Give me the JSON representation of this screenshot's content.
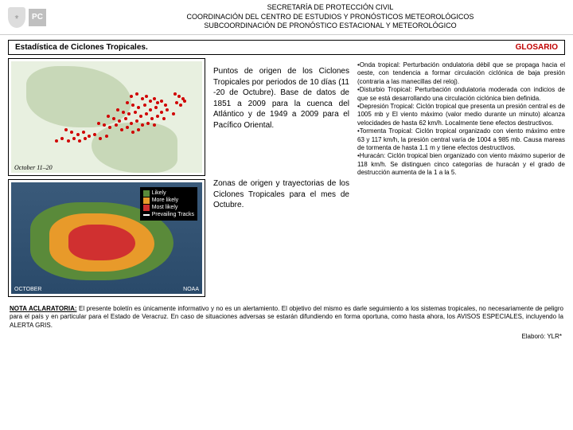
{
  "header": {
    "line1": "SECRETARÍA DE PROTECCIÓN CIVIL",
    "line2": "COORDINACIÓN DEL CENTRO DE ESTUDIOS Y PRONÓSTICOS METEOROLÓGICOS",
    "line3": "SUBCOORDINACIÓN DE PRONÓSTICO ESTACIONAL Y METEOROLÓGICO",
    "pc": "PC"
  },
  "section": {
    "title": "Estadística de Ciclones Tropicales.",
    "glosario": "GLOSARIO"
  },
  "map1": {
    "label": "October 11–20",
    "dots": [
      [
        62,
        30
      ],
      [
        65,
        28
      ],
      [
        68,
        32
      ],
      [
        70,
        30
      ],
      [
        72,
        34
      ],
      [
        74,
        32
      ],
      [
        76,
        36
      ],
      [
        78,
        34
      ],
      [
        80,
        38
      ],
      [
        60,
        36
      ],
      [
        63,
        38
      ],
      [
        66,
        40
      ],
      [
        69,
        38
      ],
      [
        72,
        42
      ],
      [
        75,
        40
      ],
      [
        78,
        44
      ],
      [
        81,
        42
      ],
      [
        84,
        46
      ],
      [
        55,
        42
      ],
      [
        58,
        44
      ],
      [
        61,
        46
      ],
      [
        64,
        44
      ],
      [
        67,
        48
      ],
      [
        70,
        46
      ],
      [
        73,
        50
      ],
      [
        76,
        48
      ],
      [
        79,
        50
      ],
      [
        50,
        48
      ],
      [
        53,
        50
      ],
      [
        56,
        52
      ],
      [
        59,
        50
      ],
      [
        62,
        54
      ],
      [
        65,
        52
      ],
      [
        68,
        56
      ],
      [
        71,
        54
      ],
      [
        74,
        56
      ],
      [
        45,
        54
      ],
      [
        48,
        56
      ],
      [
        51,
        58
      ],
      [
        54,
        56
      ],
      [
        57,
        60
      ],
      [
        60,
        58
      ],
      [
        63,
        62
      ],
      [
        66,
        60
      ],
      [
        28,
        60
      ],
      [
        31,
        62
      ],
      [
        34,
        64
      ],
      [
        37,
        62
      ],
      [
        40,
        66
      ],
      [
        43,
        64
      ],
      [
        46,
        68
      ],
      [
        49,
        66
      ],
      [
        38,
        68
      ],
      [
        35,
        70
      ],
      [
        32,
        68
      ],
      [
        29,
        70
      ],
      [
        26,
        68
      ],
      [
        23,
        70
      ],
      [
        85,
        28
      ],
      [
        87,
        30
      ],
      [
        89,
        32
      ],
      [
        86,
        36
      ],
      [
        88,
        38
      ],
      [
        90,
        34
      ]
    ]
  },
  "map2": {
    "month": "OCTOBER",
    "source": "NOAA",
    "legend": {
      "likely": "Likely",
      "more": "More likely",
      "most": "Most likely",
      "tracks": "Prevailing Tracks"
    },
    "colors": {
      "likely": "#5a8a3a",
      "more": "#e89a2a",
      "most": "#d03030",
      "tracks": "#ffffff"
    }
  },
  "descriptions": {
    "points": "Puntos de origen de los Ciclones Tropicales por periodos de 10 días (11 -20 de Octubre). Base de datos de 1851 a 2009 para la cuenca del Atlántico y de 1949 a 2009 para el Pacífico Oriental.",
    "zones": "Zonas de origen y trayectorias de los Ciclones Tropicales para el mes de Octubre."
  },
  "glossary": [
    "•Onda tropical: Perturbación ondulatoria débil que se propaga hacia el oeste, con tendencia a formar circulación ciclónica de baja presión (contraria a las manecillas del reloj).",
    "•Disturbio Tropical: Perturbación ondulatoria moderada con indicios de que se está desarrollando una circulación ciclónica bien definida.",
    "•Depresión Tropical: Ciclón tropical que presenta un presión central es de 1005 mb y El viento máximo (valor medio durante un minuto) alcanza velocidades de hasta 62 km/h. Localmente tiene efectos destructivos.",
    "•Tormenta Tropical: Ciclón tropical organizado con viento máximo entre 63 y 117 km/h, la presión central varía de 1004 a 985 mb. Causa mareas de tormenta de hasta 1.1 m y tiene efectos destructivos.",
    "•Huracán: Ciclón tropical bien organizado con viento máximo superior de 118 km/h. Se distinguen cinco categorías de huracán y el grado de destrucción aumenta de la 1 a la 5."
  ],
  "footer": {
    "label": "NOTA ACLARATORIA:",
    "text": " El presente boletín es únicamente informativo y no es un alertamiento. El objetivo del mismo es darle seguimiento a los sistemas tropicales, no necesariamente de peligro para el país y en particular para el Estado de Veracruz. En caso de situaciones adversas se estarán difundiendo en forma oportuna, como hasta ahora, los AVISOS ESPECIALES, incluyendo la ALERTA GRIS.",
    "elaboro": "Elaboró: YLR*"
  }
}
